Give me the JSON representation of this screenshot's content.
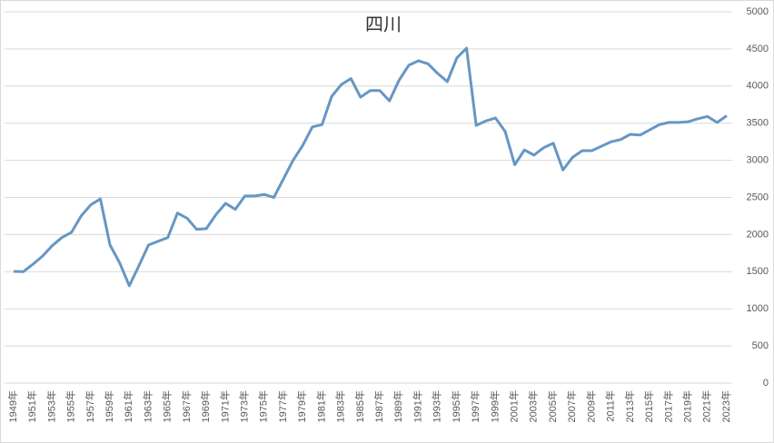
{
  "chart_data": {
    "type": "line",
    "title": "四川",
    "categories": [
      "1949年",
      null,
      "1951年",
      null,
      "1953年",
      null,
      "1955年",
      null,
      "1957年",
      null,
      "1959年",
      null,
      "1961年",
      null,
      "1963年",
      null,
      "1965年",
      null,
      "1967年",
      null,
      "1969年",
      null,
      "1971年",
      null,
      "1973年",
      null,
      "1975年",
      null,
      "1977年",
      null,
      "1979年",
      null,
      "1981年",
      null,
      "1983年",
      null,
      "1985年",
      null,
      "1987年",
      null,
      "1989年",
      null,
      "1991年",
      null,
      "1993年",
      null,
      "1995年",
      null,
      "1997年",
      null,
      "1999年",
      null,
      "2001年",
      null,
      "2003年",
      null,
      "2005年",
      null,
      "2007年",
      null,
      "2009年",
      null,
      "2011年",
      null,
      "2013年",
      null,
      "2015年",
      null,
      "2017年",
      null,
      "2019年",
      null,
      "2021年",
      null,
      "2023年"
    ],
    "series": [
      {
        "name": "四川",
        "color": "#6597c4",
        "values": [
          1504,
          1500,
          1600,
          1710,
          1850,
          1960,
          2030,
          2250,
          2400,
          2480,
          1860,
          1620,
          1310,
          1580,
          1860,
          1910,
          1960,
          2290,
          2220,
          2070,
          2080,
          2270,
          2420,
          2340,
          2520,
          2520,
          2540,
          2500,
          2750,
          3000,
          3200,
          3450,
          3480,
          3860,
          4020,
          4100,
          3850,
          3940,
          3940,
          3800,
          4080,
          4280,
          4340,
          4300,
          4170,
          4060,
          4380,
          4510,
          3470,
          3530,
          3570,
          3390,
          2940,
          3140,
          3070,
          3170,
          3230,
          2870,
          3040,
          3130,
          3130,
          3190,
          3250,
          3280,
          3350,
          3340,
          3410,
          3480,
          3510,
          3510,
          3520,
          3560,
          3590,
          3510,
          3600
        ]
      }
    ],
    "ylim": [
      0,
      5000
    ],
    "yticks": [
      0,
      500,
      1000,
      1500,
      2000,
      2500,
      3000,
      3500,
      4000,
      4500,
      5000
    ],
    "grid": true
  }
}
